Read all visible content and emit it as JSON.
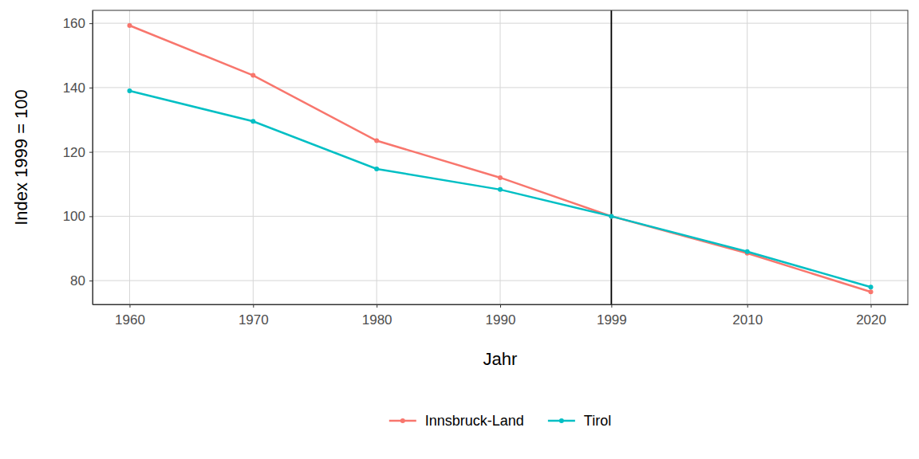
{
  "chart_data": {
    "type": "line",
    "x_label": "Jahr",
    "y_label": "Index 1999 = 100",
    "x": [
      1960,
      1970,
      1980,
      1990,
      1999,
      2010,
      2020
    ],
    "series": [
      {
        "name": "Innsbruck-Land",
        "color": "#F8766D",
        "marker": "circle",
        "values": [
          159.3,
          143.8,
          123.5,
          112.0,
          100,
          88.5,
          76.5
        ]
      },
      {
        "name": "Tirol",
        "color": "#00BFC4",
        "marker": "circle",
        "values": [
          139.0,
          129.5,
          114.7,
          108.3,
          100,
          89.0,
          78.0
        ]
      }
    ],
    "xlim": [
      1957,
      2023
    ],
    "xticks": [
      1960,
      1970,
      1980,
      1990,
      1999,
      2010,
      2020
    ],
    "ylim": [
      72.6,
      164
    ],
    "yticks": [
      80,
      100,
      120,
      140,
      160
    ],
    "vline": 1999,
    "grid": true,
    "legend": "bottom"
  }
}
